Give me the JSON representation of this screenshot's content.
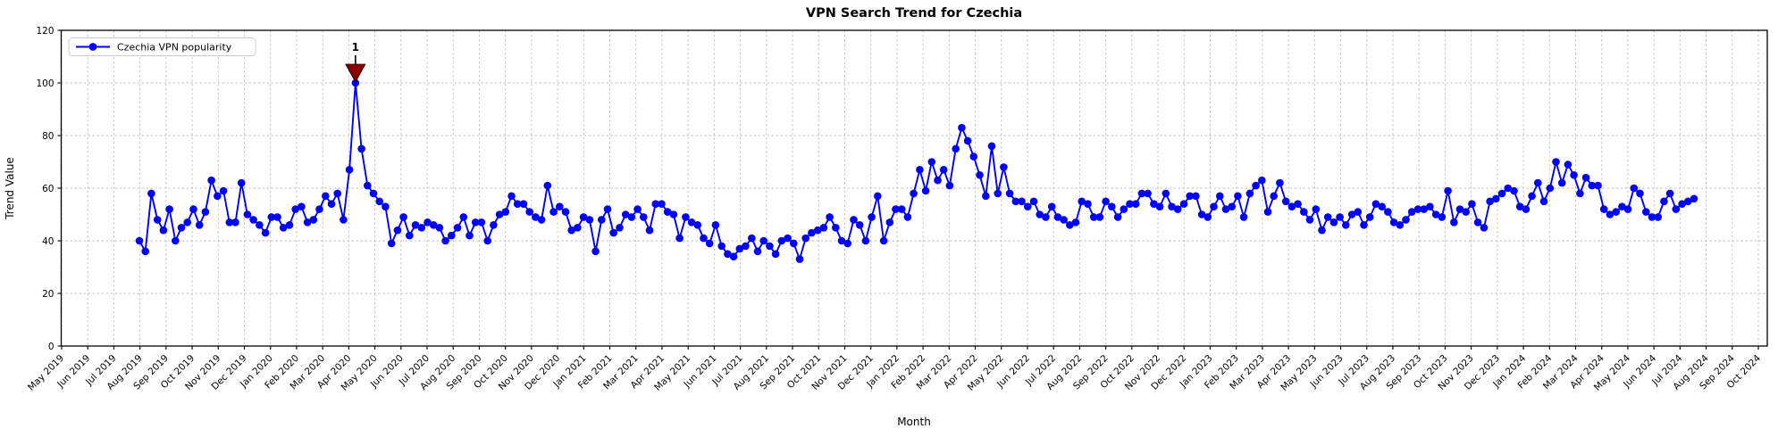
{
  "figure": {
    "title": "VPN Search Trend for Czechia",
    "background": "#ffffff"
  },
  "legend": {
    "label": "Czechia VPN popularity",
    "position": "upper left"
  },
  "annotation": {
    "label": "1",
    "color": "#8b0000",
    "points_to_value": 100,
    "near_month": "Apr 2020"
  },
  "chart_data": {
    "type": "line",
    "title": "VPN Search Trend for Czechia",
    "xlabel": "Month",
    "ylabel": "Trend Value",
    "ylim": [
      0,
      120
    ],
    "yticks": [
      0,
      20,
      40,
      60,
      80,
      100,
      120
    ],
    "grid": true,
    "grid_style": "dashed",
    "legend_position": "upper left",
    "line_color": "#0000ff",
    "marker": "circle",
    "sampling": "weekly",
    "data_start_label": "Aug 2019",
    "data_end_label": "Jul 2024",
    "x_tick_labels": [
      "May 2019",
      "Jun 2019",
      "Jul 2019",
      "Aug 2019",
      "Sep 2019",
      "Oct 2019",
      "Nov 2019",
      "Dec 2019",
      "Jan 2020",
      "Feb 2020",
      "Mar 2020",
      "Apr 2020",
      "May 2020",
      "Jun 2020",
      "Jul 2020",
      "Aug 2020",
      "Sep 2020",
      "Oct 2020",
      "Nov 2020",
      "Dec 2020",
      "Jan 2021",
      "Feb 2021",
      "Mar 2021",
      "Apr 2021",
      "May 2021",
      "Jun 2021",
      "Jul 2021",
      "Aug 2021",
      "Sep 2021",
      "Oct 2021",
      "Nov 2021",
      "Dec 2021",
      "Jan 2022",
      "Feb 2022",
      "Mar 2022",
      "Apr 2022",
      "May 2022",
      "Jun 2022",
      "Jul 2022",
      "Aug 2022",
      "Sep 2022",
      "Oct 2022",
      "Nov 2022",
      "Dec 2022",
      "Jan 2023",
      "Feb 2023",
      "Mar 2023",
      "Apr 2023",
      "May 2023",
      "Jun 2023",
      "Jul 2023",
      "Aug 2023",
      "Sep 2023",
      "Oct 2023",
      "Nov 2023",
      "Dec 2023",
      "Jan 2024",
      "Feb 2024",
      "Mar 2024",
      "Apr 2024",
      "May 2024",
      "Jun 2024",
      "Jul 2024",
      "Aug 2024",
      "Sep 2024",
      "Oct 2024"
    ],
    "series": [
      {
        "name": "Czechia VPN popularity",
        "color": "#0000ff",
        "values": [
          40,
          36,
          58,
          48,
          44,
          52,
          40,
          45,
          47,
          52,
          46,
          51,
          63,
          57,
          59,
          47,
          47,
          62,
          50,
          48,
          46,
          43,
          49,
          49,
          45,
          46,
          52,
          53,
          47,
          48,
          52,
          57,
          54,
          58,
          48,
          67,
          100,
          75,
          61,
          58,
          55,
          53,
          39,
          44,
          49,
          42,
          46,
          45,
          47,
          46,
          45,
          40,
          42,
          45,
          49,
          42,
          47,
          47,
          40,
          46,
          50,
          51,
          57,
          54,
          54,
          51,
          49,
          48,
          61,
          51,
          53,
          51,
          44,
          45,
          49,
          48,
          36,
          48,
          52,
          43,
          45,
          50,
          49,
          52,
          49,
          44,
          54,
          54,
          51,
          50,
          41,
          49,
          47,
          46,
          41,
          39,
          46,
          38,
          35,
          34,
          37,
          38,
          41,
          36,
          40,
          38,
          35,
          40,
          41,
          39,
          33,
          41,
          43,
          44,
          45,
          49,
          45,
          40,
          39,
          48,
          46,
          40,
          49,
          57,
          40,
          47,
          52,
          52,
          49,
          58,
          67,
          59,
          70,
          63,
          67,
          61,
          75,
          83,
          78,
          72,
          65,
          57,
          76,
          58,
          68,
          58,
          55,
          55,
          53,
          55,
          50,
          49,
          53,
          49,
          48,
          46,
          47,
          55,
          54,
          49,
          49,
          55,
          53,
          49,
          52,
          54,
          54,
          58,
          58,
          54,
          53,
          58,
          53,
          52,
          54,
          57,
          57,
          50,
          49,
          53,
          57,
          52,
          53,
          57,
          49,
          58,
          61,
          63,
          51,
          57,
          62,
          55,
          53,
          54,
          51,
          48,
          52,
          44,
          49,
          47,
          49,
          46,
          50,
          51,
          46,
          49,
          54,
          53,
          51,
          47,
          46,
          48,
          51,
          52,
          52,
          53,
          50,
          49,
          59,
          47,
          52,
          51,
          54,
          47,
          45,
          55,
          56,
          58,
          60,
          59,
          53,
          52,
          57,
          62,
          55,
          60,
          70,
          62,
          69,
          65,
          58,
          64,
          61,
          61,
          52,
          50,
          51,
          53,
          52,
          60,
          58,
          51,
          49,
          49,
          55,
          58,
          52,
          54,
          55,
          56
        ]
      }
    ],
    "annotations": [
      {
        "label": "1",
        "value": 100,
        "near_month": "Apr 2020",
        "marker": "triangle-down",
        "color": "#8b0000"
      }
    ]
  }
}
